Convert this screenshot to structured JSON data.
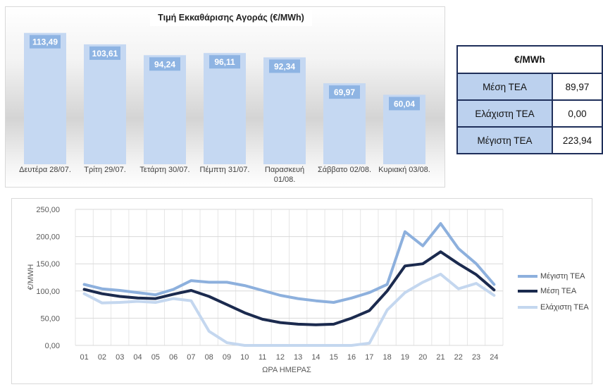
{
  "bar_chart": {
    "title": "Τιμή Εκκαθάρισης Αγοράς (€/MWh)"
  },
  "table": {
    "header": "€/MWh",
    "rows": [
      {
        "label": "Μέση ΤΕΑ",
        "value": "89,97"
      },
      {
        "label": "Ελάχιστη ΤΕΑ",
        "value": "0,00"
      },
      {
        "label": "Μέγιστη ΤΕΑ",
        "value": "223,94"
      }
    ]
  },
  "chart_data": [
    {
      "type": "bar",
      "title": "Τιμή Εκκαθάρισης Αγοράς (€/MWh)",
      "categories": [
        "Δευτέρα 28/07.",
        "Τρίτη 29/07.",
        "Τετάρτη 30/07.",
        "Πέμπτη 31/07.",
        "Παρασκευή 01/08.",
        "Σάββατο 02/08.",
        "Κυριακή 03/08."
      ],
      "values": [
        113.49,
        103.61,
        94.24,
        96.11,
        92.34,
        69.97,
        60.04
      ],
      "value_labels": [
        "113,49",
        "103,61",
        "94,24",
        "96,11",
        "92,34",
        "69,97",
        "60,04"
      ],
      "color": "#c5d8f2",
      "label_bg": "#8eb4e3",
      "ylim": [
        0,
        120
      ]
    },
    {
      "type": "line",
      "x": [
        "01",
        "02",
        "03",
        "04",
        "05",
        "06",
        "07",
        "08",
        "09",
        "10",
        "11",
        "12",
        "13",
        "14",
        "15",
        "16",
        "17",
        "18",
        "19",
        "20",
        "21",
        "22",
        "23",
        "24"
      ],
      "xlabel": "ΩΡΑ ΗΜΕΡΑΣ",
      "ylabel": "€/MWH",
      "ylim": [
        0,
        250
      ],
      "yticks": [
        "0,00",
        "50,00",
        "100,00",
        "150,00",
        "200,00",
        "250,00"
      ],
      "grid": true,
      "legend_position": "right",
      "series": [
        {
          "name": "Μέγιστη ΤΕΑ",
          "color": "#8db0dd",
          "values": [
            112,
            104,
            101,
            97,
            93,
            103,
            119,
            116,
            116,
            110,
            101,
            92,
            86,
            82,
            79,
            87,
            97,
            112,
            209,
            183,
            224,
            178,
            150,
            112
          ]
        },
        {
          "name": "Μέση ΤΕΑ",
          "color": "#1b2a4e",
          "values": [
            103,
            95,
            90,
            87,
            86,
            94,
            101,
            90,
            75,
            60,
            48,
            42,
            39,
            38,
            39,
            50,
            64,
            100,
            146,
            150,
            172,
            150,
            130,
            102
          ]
        },
        {
          "name": "Ελάχιστη ΤΕΑ",
          "color": "#c4d7ef",
          "values": [
            95,
            78,
            79,
            81,
            79,
            86,
            82,
            26,
            5,
            0,
            0,
            0,
            0,
            0,
            0,
            0,
            4,
            65,
            97,
            116,
            131,
            104,
            114,
            92
          ]
        }
      ]
    }
  ]
}
